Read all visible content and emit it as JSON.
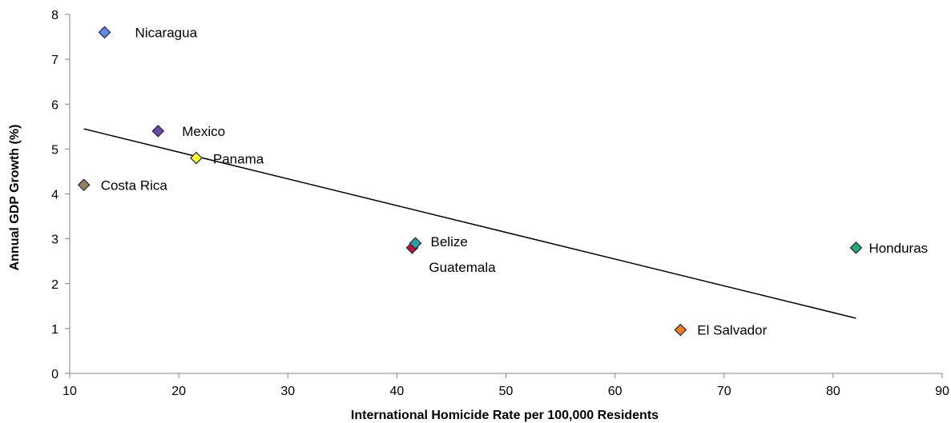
{
  "chart_data": {
    "type": "scatter",
    "title": "",
    "xlabel": "International Homicide Rate per 100,000 Residents",
    "ylabel": "Annual GDP Growth (%)",
    "xlim": [
      10,
      90
    ],
    "ylim": [
      0,
      8
    ],
    "xticks": [
      10,
      20,
      30,
      40,
      50,
      60,
      70,
      80,
      90
    ],
    "yticks": [
      0,
      1,
      2,
      3,
      4,
      5,
      6,
      7,
      8
    ],
    "grid": false,
    "legend": "none",
    "points": [
      {
        "label": "Nicaragua",
        "x": 13.2,
        "y": 7.6,
        "color": "#5b8fe0"
      },
      {
        "label": "Mexico",
        "x": 18.1,
        "y": 5.4,
        "color": "#6a4c9c"
      },
      {
        "label": "Panama",
        "x": 21.6,
        "y": 4.8,
        "color": "#ffff33"
      },
      {
        "label": "Costa Rica",
        "x": 11.3,
        "y": 4.2,
        "color": "#8f8660"
      },
      {
        "label": "Belize",
        "x": 41.7,
        "y": 2.9,
        "color": "#2aa0a0"
      },
      {
        "label": "Guatemala",
        "x": 41.4,
        "y": 2.8,
        "color": "#c0143c"
      },
      {
        "label": "Honduras",
        "x": 82.1,
        "y": 2.8,
        "color": "#20b070"
      },
      {
        "label": "El Salvador",
        "x": 66.0,
        "y": 0.97,
        "color": "#f07d1a"
      }
    ],
    "trendline": {
      "x": [
        11.3,
        82.1
      ],
      "y": [
        5.45,
        1.23
      ]
    }
  }
}
